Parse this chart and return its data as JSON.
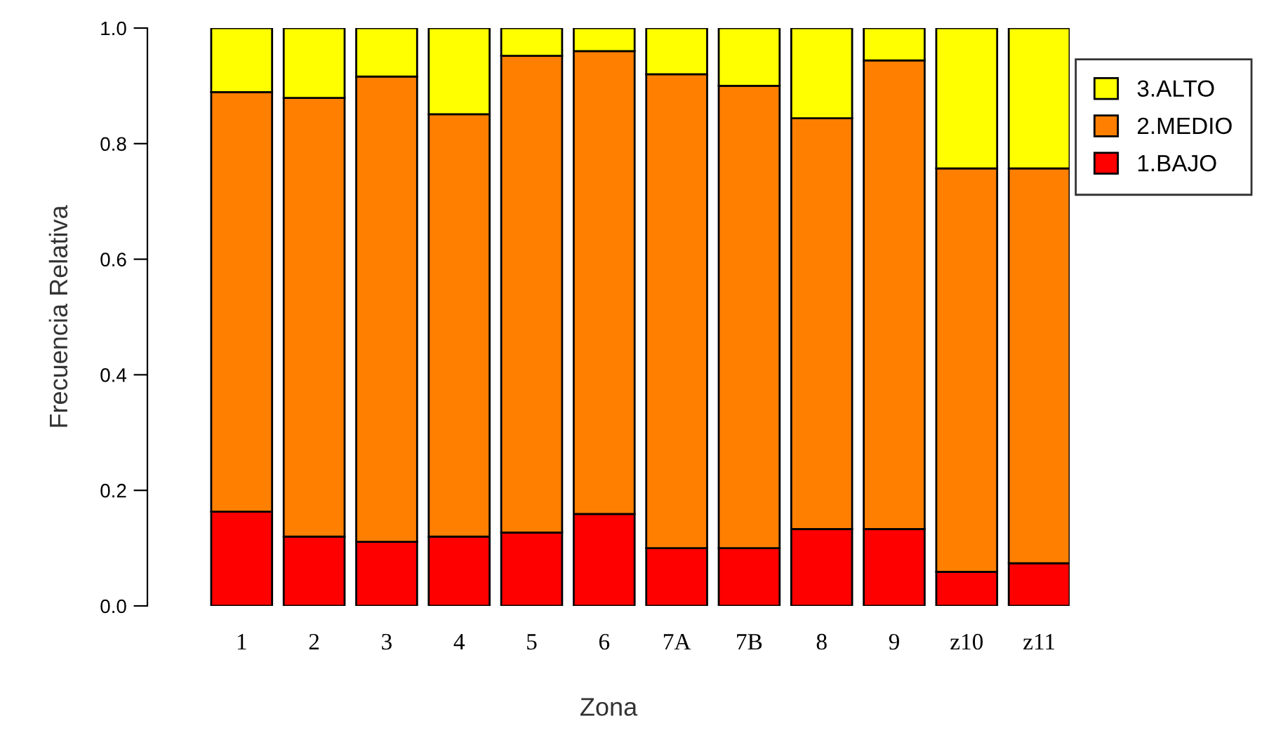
{
  "chart_data": {
    "type": "bar",
    "stacked": true,
    "xlabel": "Zona",
    "ylabel": "Frecuencia Relativa",
    "categories": [
      "1",
      "2",
      "3",
      "4",
      "5",
      "6",
      "7A",
      "7B",
      "8",
      "9",
      "z10",
      "z11"
    ],
    "series": [
      {
        "name": "1.BAJO",
        "color": "#ff0000",
        "values": [
          0.163,
          0.12,
          0.111,
          0.12,
          0.127,
          0.159,
          0.1,
          0.1,
          0.133,
          0.133,
          0.059,
          0.074
        ]
      },
      {
        "name": "2.MEDIO",
        "color": "#ff7f00",
        "values": [
          0.726,
          0.759,
          0.805,
          0.731,
          0.825,
          0.801,
          0.82,
          0.8,
          0.711,
          0.811,
          0.698,
          0.683
        ]
      },
      {
        "name": "3.ALTO",
        "color": "#ffff00",
        "values": [
          0.111,
          0.121,
          0.084,
          0.149,
          0.048,
          0.04,
          0.08,
          0.1,
          0.156,
          0.056,
          0.243,
          0.243
        ]
      }
    ],
    "ylim": [
      0,
      1
    ],
    "yticks": [
      {
        "value": 0,
        "label": "0.0"
      },
      {
        "value": 0.2,
        "label": "0.2"
      },
      {
        "value": 0.4,
        "label": "0.4"
      },
      {
        "value": 0.6,
        "label": "0.6"
      },
      {
        "value": 0.8,
        "label": "0.8"
      },
      {
        "value": 1,
        "label": "1.0"
      }
    ],
    "grid": false,
    "legend": "top right"
  }
}
